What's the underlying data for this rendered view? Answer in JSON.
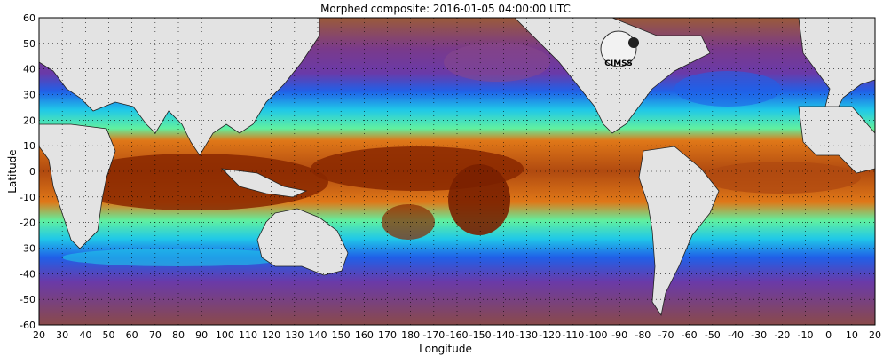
{
  "map": {
    "title": "Morphed composite: 2016-01-05 04:00:00 UTC",
    "xlabel": "Longitude",
    "ylabel": "Latitude",
    "x_ticks": [
      "20",
      "30",
      "40",
      "50",
      "60",
      "70",
      "80",
      "90",
      "100",
      "110",
      "120",
      "130",
      "140",
      "150",
      "160",
      "170",
      "180",
      "-170",
      "-160",
      "-150",
      "-140",
      "-130",
      "-120",
      "-110",
      "-100",
      "-90",
      "-80",
      "-70",
      "-60",
      "-50",
      "-40",
      "-30",
      "-20",
      "-10",
      "0",
      "10",
      "20"
    ],
    "y_ticks": [
      "60",
      "50",
      "40",
      "30",
      "20",
      "10",
      "0",
      "-10",
      "-20",
      "-30",
      "-40",
      "-50",
      "-60"
    ],
    "logo_text": "CIMSS",
    "colors": {
      "land": "#e3e3e3",
      "deep": "#8a2800",
      "orange": "#e07818",
      "yellow": "#f0f060",
      "green": "#60f0a0",
      "cyan": "#20c8e8",
      "blue": "#2060e8",
      "violet": "#6a3aa8",
      "purple": "#7a3a8a",
      "brown": "#9a5a3a"
    }
  }
}
